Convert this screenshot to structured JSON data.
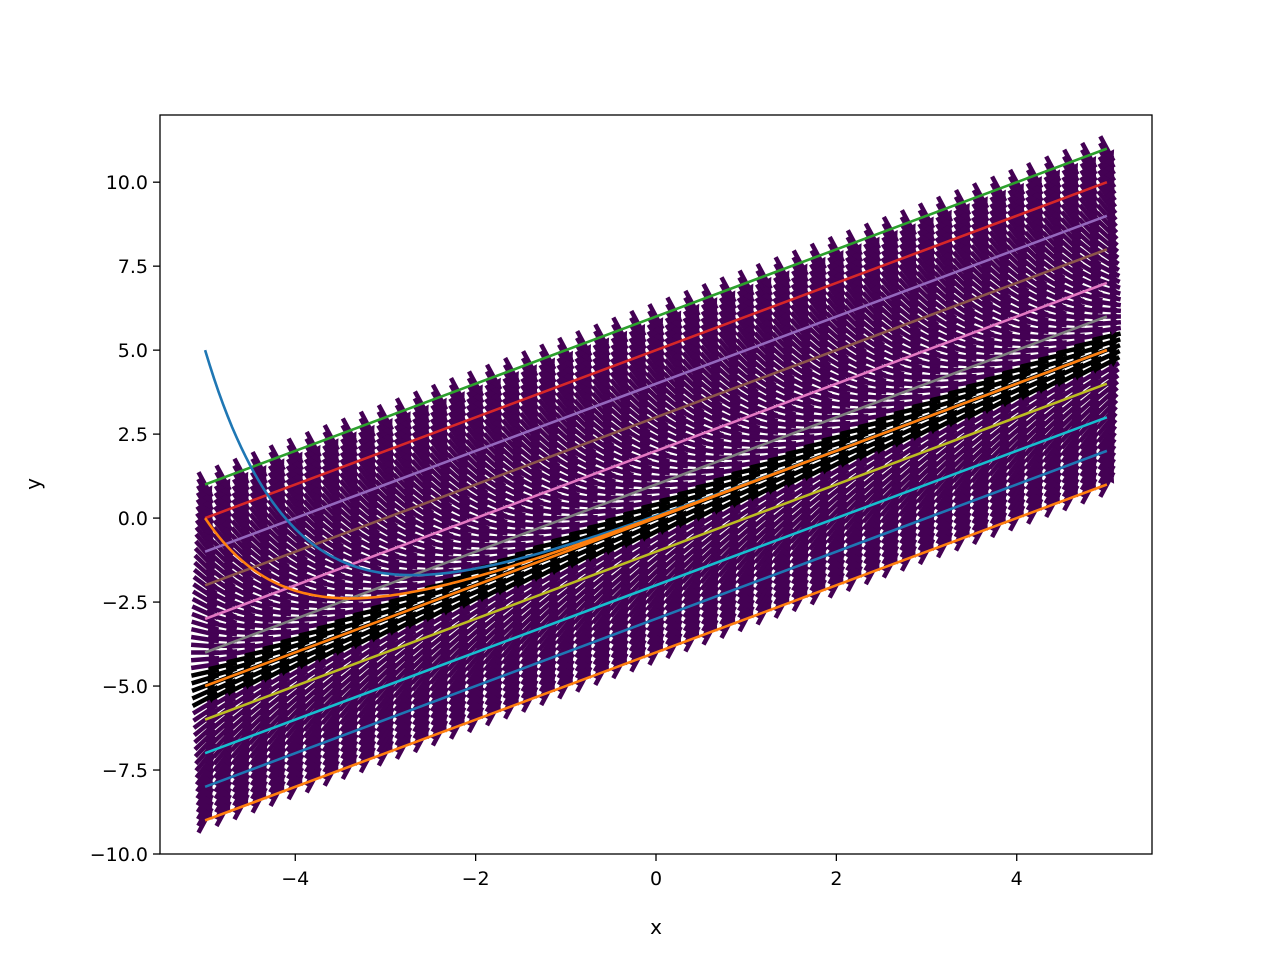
{
  "chart_data": {
    "type": "line",
    "title": "",
    "xlabel": "x",
    "ylabel": "y",
    "xlim": [
      -5.5,
      5.5
    ],
    "ylim": [
      -10,
      12
    ],
    "xticks": [
      -4,
      -2,
      0,
      2,
      4
    ],
    "xtick_labels": [
      "−4",
      "−2",
      "0",
      "2",
      "4"
    ],
    "yticks": [
      -10,
      -7.5,
      -5,
      -2.5,
      0,
      2.5,
      5,
      7.5,
      10
    ],
    "ytick_labels": [
      "−10.0",
      "−7.5",
      "−5.0",
      "−2.5",
      "0.0",
      "2.5",
      "5.0",
      "7.5",
      "10.0"
    ],
    "grid": false,
    "legend": "none",
    "direction_field": {
      "x_range": [
        -5,
        5
      ],
      "rows": 51,
      "cols": 51,
      "band_offset_range": [
        -4,
        6
      ],
      "band_slope": 1,
      "arrow_color": "#440154",
      "black_band_offset": [
        -0.45,
        0.45
      ],
      "black_arrow_color": "#000000"
    },
    "series": [
      {
        "type": "offset",
        "c": 6,
        "color": "#2ca02c"
      },
      {
        "type": "offset",
        "c": 5,
        "color": "#d62728"
      },
      {
        "type": "offset",
        "c": 4,
        "color": "#9467bd"
      },
      {
        "type": "offset",
        "c": 3,
        "color": "#8c564b"
      },
      {
        "type": "offset",
        "c": 2,
        "color": "#e377c2"
      },
      {
        "type": "offset",
        "c": 1,
        "color": "#7f7f7f"
      },
      {
        "type": "offset",
        "c": 0,
        "color": "#ff7f0e"
      },
      {
        "type": "offset",
        "c": -1,
        "color": "#bcbd22"
      },
      {
        "type": "offset",
        "c": -2,
        "color": "#17becf"
      },
      {
        "type": "offset",
        "c": -3,
        "color": "#1f77b4"
      },
      {
        "type": "offset",
        "c": -4,
        "color": "#ff7f0e"
      },
      {
        "type": "decay",
        "x0": -5,
        "y0": 5,
        "color": "#1f77b4"
      },
      {
        "type": "decay",
        "x0": -5,
        "y0": 0,
        "color": "#ff7f0e"
      }
    ]
  }
}
